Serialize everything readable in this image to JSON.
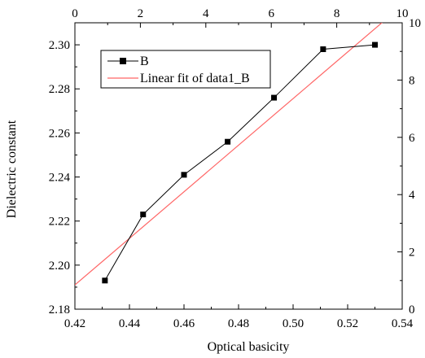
{
  "chart_data": {
    "type": "scatter",
    "xlabel": "Optical basicity",
    "ylabel": "Dielectric constant",
    "xlim": [
      0.42,
      0.54
    ],
    "ylim": [
      2.18,
      2.31
    ],
    "x_ticks": [
      "0.42",
      "0.44",
      "0.46",
      "0.48",
      "0.50",
      "0.52",
      "0.54"
    ],
    "y_ticks": [
      "2.18",
      "2.20",
      "2.22",
      "2.24",
      "2.26",
      "2.28",
      "2.30"
    ],
    "top_axis": {
      "range": [
        0,
        10
      ],
      "ticks": [
        "0",
        "2",
        "4",
        "6",
        "8",
        "10"
      ]
    },
    "right_axis": {
      "range": [
        0,
        10
      ],
      "ticks": [
        "0",
        "2",
        "4",
        "6",
        "8",
        "10"
      ]
    },
    "grid": false,
    "legend_position": "top-left",
    "series": [
      {
        "name": "B",
        "style": "line-with-square-markers",
        "color": "#000000",
        "x": [
          0.431,
          0.445,
          0.46,
          0.476,
          0.493,
          0.511,
          0.53
        ],
        "y": [
          2.193,
          2.223,
          2.241,
          2.256,
          2.276,
          2.298,
          2.3
        ]
      },
      {
        "name": "Linear fit of data1_B",
        "style": "line",
        "color": "#ff6666",
        "x": [
          0.42,
          0.542
        ],
        "y": [
          2.191,
          2.32
        ]
      }
    ]
  }
}
